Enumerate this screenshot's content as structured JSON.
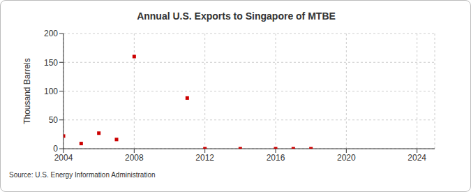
{
  "chart_data": {
    "type": "scatter",
    "title": "Annual U.S. Exports to Singapore of MTBE",
    "y_label": "Thousand Barrels",
    "source": "Source: U.S. Energy Information Administration",
    "x": [
      2004,
      2005,
      2006,
      2007,
      2008,
      2011,
      2012,
      2014,
      2016,
      2017,
      2018
    ],
    "values": [
      22,
      9,
      27,
      16,
      160,
      88,
      0,
      0,
      0,
      0,
      0
    ],
    "color": "#cc0000",
    "marker": "square",
    "xlim": [
      2004,
      2025
    ],
    "xticks": [
      2004,
      2008,
      2012,
      2016,
      2020,
      2024
    ],
    "ylim": [
      0,
      200
    ],
    "yticks": [
      0,
      50,
      100,
      150,
      200
    ],
    "grid": true
  }
}
